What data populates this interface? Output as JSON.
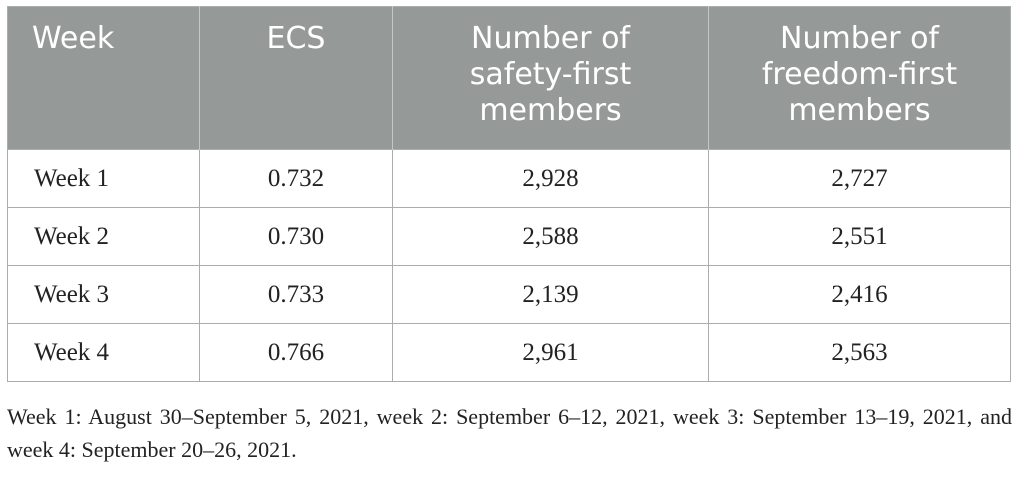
{
  "table": {
    "headers": [
      "Week",
      "ECS",
      "Number of\nsafety-first\nmembers",
      "Number of\nfreedom-first\nmembers"
    ],
    "rows": [
      [
        "Week 1",
        "0.732",
        "2,928",
        "2,727"
      ],
      [
        "Week 2",
        "0.730",
        "2,588",
        "2,551"
      ],
      [
        "Week 3",
        "0.733",
        "2,139",
        "2,416"
      ],
      [
        "Week 4",
        "0.766",
        "2,961",
        "2,563"
      ]
    ]
  },
  "footnote": "Week 1: August 30–September 5, 2021, week 2: September 6–12, 2021, week 3: September 13–19, 2021, and week 4: September 20–26, 2021.",
  "colors": {
    "header_bg": "#959a98",
    "header_text": "#ffffff",
    "border": "#a9aeac",
    "body_text": "#222222"
  }
}
